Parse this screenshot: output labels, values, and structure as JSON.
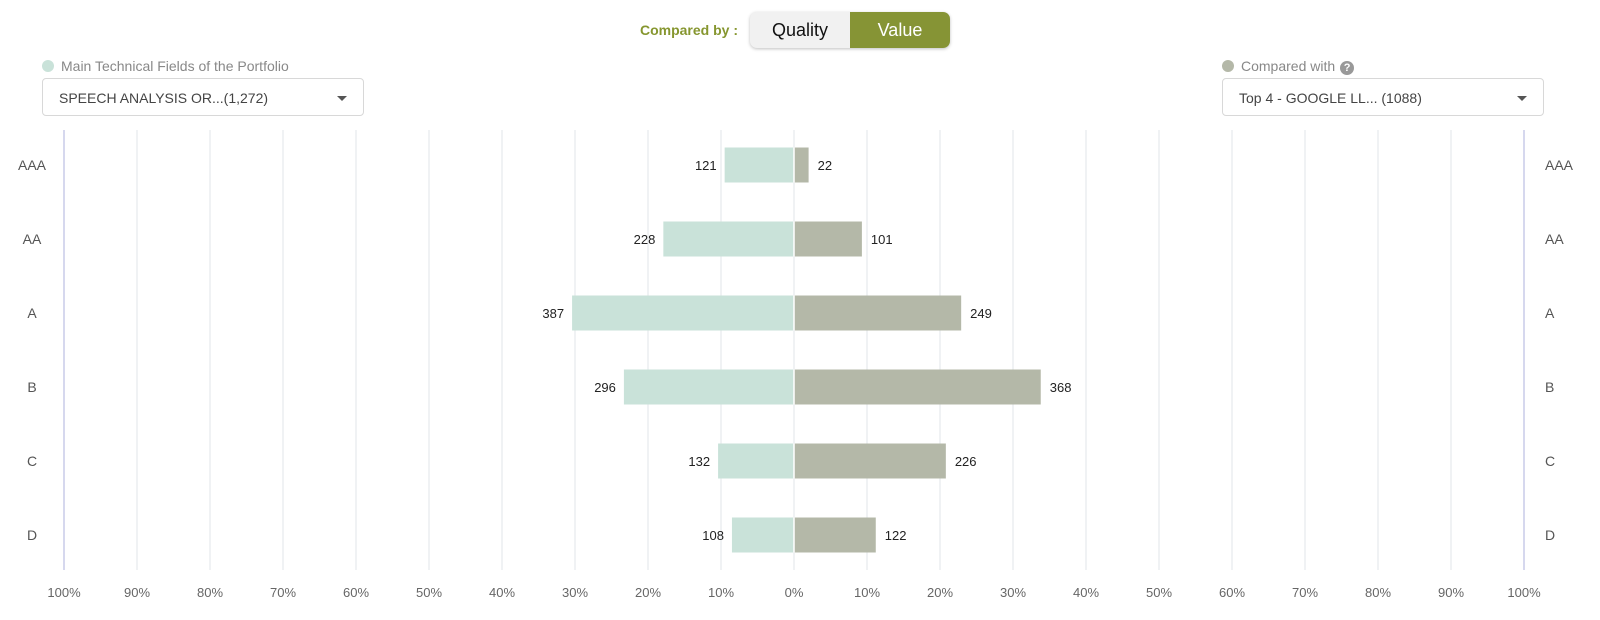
{
  "header": {
    "compared_by_label": "Compared by :",
    "toggle": {
      "quality_label": "Quality",
      "value_label": "Value",
      "selected": "Value"
    }
  },
  "left_panel": {
    "legend_label": "Main Technical Fields of the Portfolio",
    "dropdown_value": "SPEECH ANALYSIS OR...(1,272)"
  },
  "right_panel": {
    "legend_label": "Compared with",
    "dropdown_value": "Top 4 - GOOGLE LL... (1088)"
  },
  "colors": {
    "accent": "#86962f",
    "left_series": "#c9e2d9",
    "right_series": "#b4b8a8",
    "grid": "#e2e4e9",
    "axis_edge": "#c8cce8"
  },
  "chart_data": {
    "type": "bar",
    "orientation": "horizontal-diverging",
    "categories": [
      "AAA",
      "AA",
      "A",
      "B",
      "C",
      "D"
    ],
    "x_tick_labels": [
      "100%",
      "90%",
      "80%",
      "70%",
      "60%",
      "50%",
      "40%",
      "30%",
      "20%",
      "10%",
      "0%",
      "10%",
      "20%",
      "30%",
      "40%",
      "50%",
      "60%",
      "70%",
      "80%",
      "90%",
      "100%"
    ],
    "xlim": [
      -100,
      100
    ],
    "grid": true,
    "series": [
      {
        "side": "left",
        "counts": [
          121,
          228,
          387,
          296,
          132,
          108
        ],
        "percent": [
          9.5,
          17.9,
          30.4,
          23.3,
          10.4,
          8.5
        ]
      },
      {
        "side": "right",
        "counts": [
          22,
          101,
          249,
          368,
          226,
          122
        ],
        "percent": [
          2.0,
          9.3,
          22.9,
          33.8,
          20.8,
          11.2
        ]
      }
    ]
  }
}
